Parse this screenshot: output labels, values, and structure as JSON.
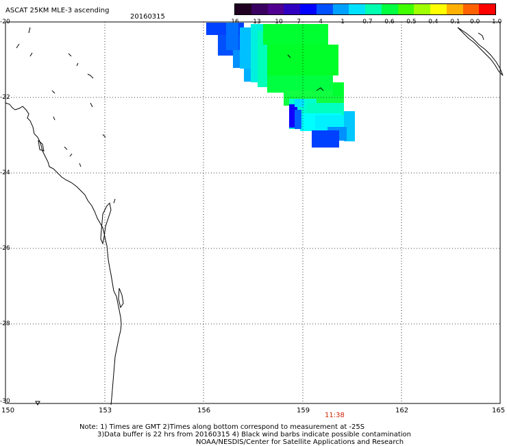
{
  "header": {
    "title": "ASCAT 25KM MLE-3 ascending",
    "date": "20160315"
  },
  "colorbar": {
    "labels": [
      "-16",
      "-13",
      "-10",
      "-7",
      "-4",
      "-1",
      "-0.7",
      "-0.6",
      "-0.5",
      "-0.4",
      "-0.1",
      "0.0",
      "1.0"
    ],
    "colors": [
      "#200020",
      "#3a0060",
      "#500090",
      "#3000c0",
      "#0000ff",
      "#0050ff",
      "#00a0ff",
      "#00e0ff",
      "#00ffb0",
      "#00ff40",
      "#40ff00",
      "#a0ff00",
      "#ffff00",
      "#ffb000",
      "#ff6000",
      "#ff0000"
    ]
  },
  "map": {
    "lat_labels": [
      "-20",
      "-22",
      "-24",
      "-26",
      "-28",
      "-30"
    ],
    "lon_labels": [
      "150",
      "153",
      "156",
      "159",
      "162",
      "165"
    ],
    "time_label": "11:38"
  },
  "notes": {
    "line1": "Note: 1) Times are GMT 2)Times along bottom correspond to measurement at -25S",
    "line2": "3)Data buffer is 22 hrs from 20160315 4) Black wind barbs indicate possible contamination",
    "line3": "NOAA/NESDIS/Center for Satellite Applications and Research"
  }
}
